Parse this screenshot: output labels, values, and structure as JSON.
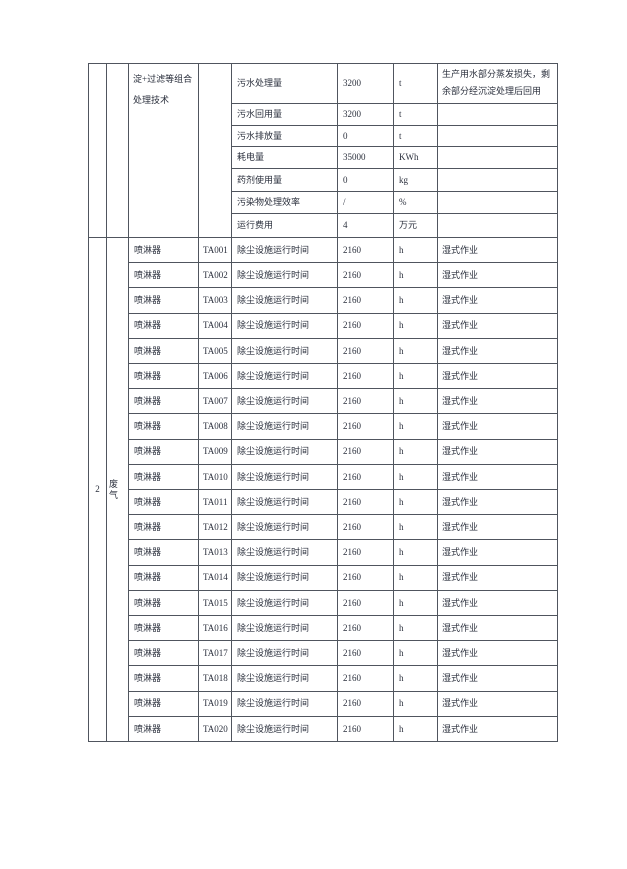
{
  "document": {
    "colors": {
      "text": "#2a2f3c",
      "border": "#50555e",
      "page_bg": "#ffffff"
    },
    "continuation": {
      "treatment_technology": "淀+过滤等组合处理技术"
    },
    "wastewater": {
      "rows": [
        {
          "indicator": "污水处理量",
          "value": "3200",
          "unit": "t",
          "remark": "生产用水部分蒸发损失，剩余部分经沉淀处理后回用"
        },
        {
          "indicator": "污水回用量",
          "value": "3200",
          "unit": "t",
          "remark": ""
        },
        {
          "indicator": "污水排放量",
          "value": "0",
          "unit": "t",
          "remark": ""
        },
        {
          "indicator": "耗电量",
          "value": "35000",
          "unit": "KWh",
          "remark": ""
        },
        {
          "indicator": "药剂使用量",
          "value": "0",
          "unit": "kg",
          "remark": ""
        },
        {
          "indicator": "污染物处理效率",
          "value": "/",
          "unit": "%",
          "remark": ""
        },
        {
          "indicator": "运行费用",
          "value": "4",
          "unit": "万元",
          "remark": ""
        }
      ]
    },
    "waste_gas": {
      "seq": "2",
      "category": "废气",
      "rows": [
        {
          "device": "喷淋器",
          "code": "TA001",
          "indicator": "除尘设施运行时间",
          "value": "2160",
          "unit": "h",
          "remark": "湿式作业"
        },
        {
          "device": "喷淋器",
          "code": "TA002",
          "indicator": "除尘设施运行时间",
          "value": "2160",
          "unit": "h",
          "remark": "湿式作业"
        },
        {
          "device": "喷淋器",
          "code": "TA003",
          "indicator": "除尘设施运行时间",
          "value": "2160",
          "unit": "h",
          "remark": "湿式作业"
        },
        {
          "device": "喷淋器",
          "code": "TA004",
          "indicator": "除尘设施运行时间",
          "value": "2160",
          "unit": "h",
          "remark": "湿式作业"
        },
        {
          "device": "喷淋器",
          "code": "TA005",
          "indicator": "除尘设施运行时间",
          "value": "2160",
          "unit": "h",
          "remark": "湿式作业"
        },
        {
          "device": "喷淋器",
          "code": "TA006",
          "indicator": "除尘设施运行时间",
          "value": "2160",
          "unit": "h",
          "remark": "湿式作业"
        },
        {
          "device": "喷淋器",
          "code": "TA007",
          "indicator": "除尘设施运行时间",
          "value": "2160",
          "unit": "h",
          "remark": "湿式作业"
        },
        {
          "device": "喷淋器",
          "code": "TA008",
          "indicator": "除尘设施运行时间",
          "value": "2160",
          "unit": "h",
          "remark": "湿式作业"
        },
        {
          "device": "喷淋器",
          "code": "TA009",
          "indicator": "除尘设施运行时间",
          "value": "2160",
          "unit": "h",
          "remark": "湿式作业"
        },
        {
          "device": "喷淋器",
          "code": "TA010",
          "indicator": "除尘设施运行时间",
          "value": "2160",
          "unit": "h",
          "remark": "湿式作业"
        },
        {
          "device": "喷淋器",
          "code": "TA011",
          "indicator": "除尘设施运行时间",
          "value": "2160",
          "unit": "h",
          "remark": "湿式作业"
        },
        {
          "device": "喷淋器",
          "code": "TA012",
          "indicator": "除尘设施运行时间",
          "value": "2160",
          "unit": "h",
          "remark": "湿式作业"
        },
        {
          "device": "喷淋器",
          "code": "TA013",
          "indicator": "除尘设施运行时间",
          "value": "2160",
          "unit": "h",
          "remark": "湿式作业"
        },
        {
          "device": "喷淋器",
          "code": "TA014",
          "indicator": "除尘设施运行时间",
          "value": "2160",
          "unit": "h",
          "remark": "湿式作业"
        },
        {
          "device": "喷淋器",
          "code": "TA015",
          "indicator": "除尘设施运行时间",
          "value": "2160",
          "unit": "h",
          "remark": "湿式作业"
        },
        {
          "device": "喷淋器",
          "code": "TA016",
          "indicator": "除尘设施运行时间",
          "value": "2160",
          "unit": "h",
          "remark": "湿式作业"
        },
        {
          "device": "喷淋器",
          "code": "TA017",
          "indicator": "除尘设施运行时间",
          "value": "2160",
          "unit": "h",
          "remark": "湿式作业"
        },
        {
          "device": "喷淋器",
          "code": "TA018",
          "indicator": "除尘设施运行时间",
          "value": "2160",
          "unit": "h",
          "remark": "湿式作业"
        },
        {
          "device": "喷淋器",
          "code": "TA019",
          "indicator": "除尘设施运行时间",
          "value": "2160",
          "unit": "h",
          "remark": "湿式作业"
        },
        {
          "device": "喷淋器",
          "code": "TA020",
          "indicator": "除尘设施运行时间",
          "value": "2160",
          "unit": "h",
          "remark": "湿式作业"
        }
      ]
    }
  }
}
